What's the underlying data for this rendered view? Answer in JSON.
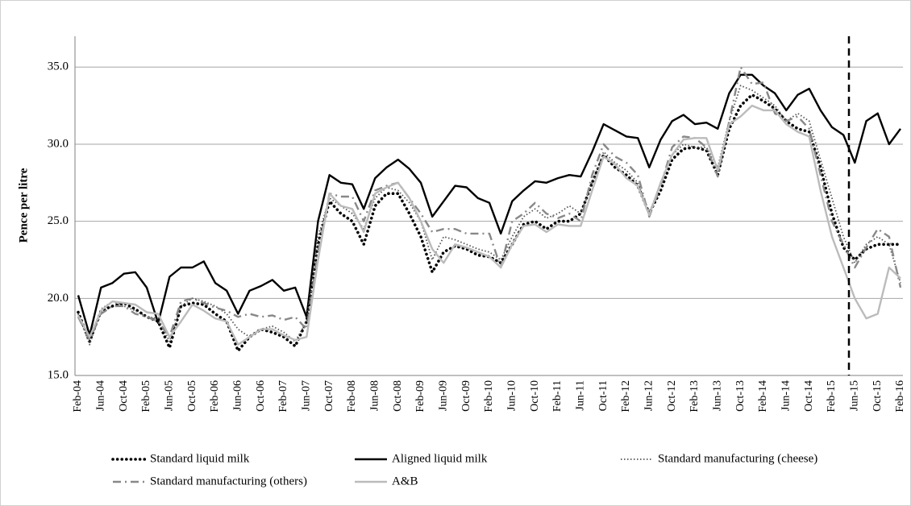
{
  "chart_data": {
    "type": "line",
    "y_label": "Pence per litre",
    "categories": [
      "Feb-04",
      null,
      "Jun-04",
      null,
      "Oct-04",
      null,
      "Feb-05",
      null,
      "Jun-05",
      null,
      "Oct-05",
      null,
      "Feb-06",
      null,
      "Jun-06",
      null,
      "Oct-06",
      null,
      "Feb-07",
      null,
      "Jun-07",
      null,
      "Oct-07",
      null,
      "Feb-08",
      null,
      "Jun-08",
      null,
      "Oct-08",
      null,
      "Feb-09",
      null,
      "Jun-09",
      null,
      "Oct-09",
      null,
      "Feb-10",
      null,
      "Jun-10",
      null,
      "Oct-10",
      null,
      "Feb-11",
      null,
      "Jun-11",
      null,
      "Oct-11",
      null,
      "Feb-12",
      null,
      "Jun-12",
      null,
      "Oct-12",
      null,
      "Feb-13",
      null,
      "Jun-13",
      null,
      "Oct-13",
      null,
      "Feb-14",
      null,
      "Jun-14",
      null,
      "Oct-14",
      null,
      "Feb-15",
      null,
      "Jun-15",
      null,
      "Oct-15",
      null,
      "Feb-16"
    ],
    "series": [
      {
        "name": "Standard liquid milk",
        "color": "#000000",
        "style": "dots",
        "values": [
          19.1,
          17.2,
          19.2,
          19.5,
          19.7,
          19.3,
          18.8,
          18.5,
          16.8,
          19.5,
          19.7,
          19.6,
          19.0,
          18.5,
          16.6,
          17.5,
          18.0,
          17.8,
          17.5,
          16.9,
          18.5,
          23.5,
          26.3,
          25.5,
          25.0,
          23.5,
          26.0,
          26.8,
          26.8,
          25.5,
          24.0,
          21.7,
          23.0,
          23.4,
          23.2,
          22.8,
          22.7,
          22.3,
          23.5,
          24.8,
          25.0,
          24.5,
          25.0,
          25.0,
          25.5,
          27.5,
          29.3,
          28.5,
          28.0,
          27.3,
          25.5,
          27.0,
          29.0,
          29.7,
          29.8,
          29.6,
          28.0,
          31.0,
          32.5,
          33.2,
          32.8,
          32.3,
          31.5,
          31.0,
          30.8,
          28.5,
          25.5,
          23.3,
          22.5,
          23.2,
          23.5,
          23.5,
          23.5
        ]
      },
      {
        "name": "Aligned liquid milk",
        "color": "#000000",
        "style": "solid",
        "values": [
          20.2,
          17.6,
          20.7,
          21.0,
          21.6,
          21.7,
          20.7,
          18.4,
          21.4,
          22.0,
          22.0,
          22.4,
          21.0,
          20.5,
          19.0,
          20.5,
          20.8,
          21.2,
          20.5,
          20.7,
          18.8,
          25.0,
          28.0,
          27.5,
          27.4,
          25.8,
          27.8,
          28.5,
          29.0,
          28.4,
          27.5,
          25.3,
          26.3,
          27.3,
          27.2,
          26.5,
          26.2,
          24.2,
          26.3,
          27.0,
          27.6,
          27.5,
          27.8,
          28.0,
          27.9,
          29.5,
          31.3,
          30.9,
          30.5,
          30.4,
          28.5,
          30.3,
          31.5,
          31.9,
          31.3,
          31.4,
          31.0,
          33.3,
          34.5,
          34.5,
          33.8,
          33.3,
          32.2,
          33.2,
          33.6,
          32.2,
          31.1,
          30.6,
          28.8,
          31.5,
          32.0,
          30.0,
          31.0
        ]
      },
      {
        "name": "Standard manufacturing (cheese)",
        "color": "#555555",
        "style": "dotted",
        "values": [
          19.0,
          17.0,
          19.3,
          19.8,
          19.5,
          19.2,
          18.8,
          18.7,
          17.2,
          19.5,
          20.0,
          19.8,
          19.5,
          19.0,
          18.0,
          17.5,
          18.0,
          18.2,
          17.8,
          17.2,
          18.5,
          24.0,
          26.5,
          26.0,
          25.5,
          24.5,
          26.5,
          27.2,
          27.0,
          26.2,
          25.0,
          22.5,
          24.0,
          23.8,
          23.5,
          23.2,
          23.0,
          22.5,
          24.0,
          25.3,
          25.8,
          25.2,
          25.5,
          26.0,
          25.5,
          27.5,
          29.5,
          28.8,
          28.3,
          27.5,
          25.5,
          27.5,
          29.3,
          30.0,
          29.8,
          29.8,
          28.5,
          31.5,
          33.8,
          33.5,
          33.0,
          32.5,
          31.5,
          32.0,
          31.5,
          29.0,
          26.5,
          24.0,
          22.3,
          23.5,
          24.0,
          23.5,
          21.0
        ]
      },
      {
        "name": "Standard manufacturing (others)",
        "color": "#888888",
        "style": "dashdot",
        "values": [
          18.8,
          17.3,
          19.0,
          19.5,
          19.5,
          19.0,
          18.8,
          18.5,
          17.5,
          19.8,
          20.0,
          19.7,
          19.4,
          19.2,
          18.8,
          19.0,
          18.8,
          18.9,
          18.6,
          18.8,
          18.0,
          23.0,
          26.8,
          26.6,
          26.6,
          25.0,
          27.0,
          27.3,
          27.5,
          26.5,
          25.5,
          24.3,
          24.5,
          24.5,
          24.2,
          24.2,
          24.2,
          22.0,
          25.0,
          25.5,
          26.2,
          25.5,
          25.2,
          25.5,
          25.0,
          28.0,
          30.0,
          29.2,
          28.8,
          28.0,
          25.3,
          27.3,
          29.8,
          30.5,
          30.4,
          29.8,
          27.9,
          31.5,
          35.0,
          33.9,
          34.0,
          32.0,
          31.5,
          31.8,
          31.0,
          28.0,
          25.0,
          23.5,
          22.0,
          23.3,
          24.5,
          24.0,
          20.7
        ]
      },
      {
        "name": "A&B",
        "color": "#bbbbbb",
        "style": "solid",
        "values": [
          18.9,
          17.5,
          19.2,
          19.8,
          19.7,
          19.6,
          19.1,
          19.0,
          17.5,
          18.5,
          19.6,
          19.2,
          18.7,
          18.5,
          17.0,
          17.5,
          18.0,
          18.0,
          17.6,
          17.3,
          17.5,
          22.5,
          26.8,
          26.0,
          25.8,
          24.3,
          26.8,
          27.2,
          27.5,
          26.5,
          25.0,
          23.2,
          22.3,
          23.5,
          23.3,
          23.0,
          22.7,
          22.0,
          23.5,
          24.7,
          24.8,
          24.3,
          24.8,
          24.7,
          24.7,
          27.0,
          29.2,
          28.7,
          27.8,
          27.3,
          25.4,
          27.5,
          29.3,
          30.3,
          30.4,
          30.4,
          28.3,
          31.3,
          31.8,
          32.5,
          32.2,
          32.2,
          31.3,
          30.8,
          30.5,
          27.0,
          24.0,
          22.0,
          20.0,
          18.7,
          19.0,
          22.0,
          21.3
        ]
      }
    ],
    "ylim": [
      15,
      37
    ],
    "yticks": [
      {
        "value": 15,
        "label": "15.0"
      },
      {
        "value": 20,
        "label": "20.0"
      },
      {
        "value": 25,
        "label": "25.0"
      },
      {
        "value": 30,
        "label": "30.0"
      },
      {
        "value": 35,
        "label": "35.0"
      }
    ],
    "grid": true
  }
}
